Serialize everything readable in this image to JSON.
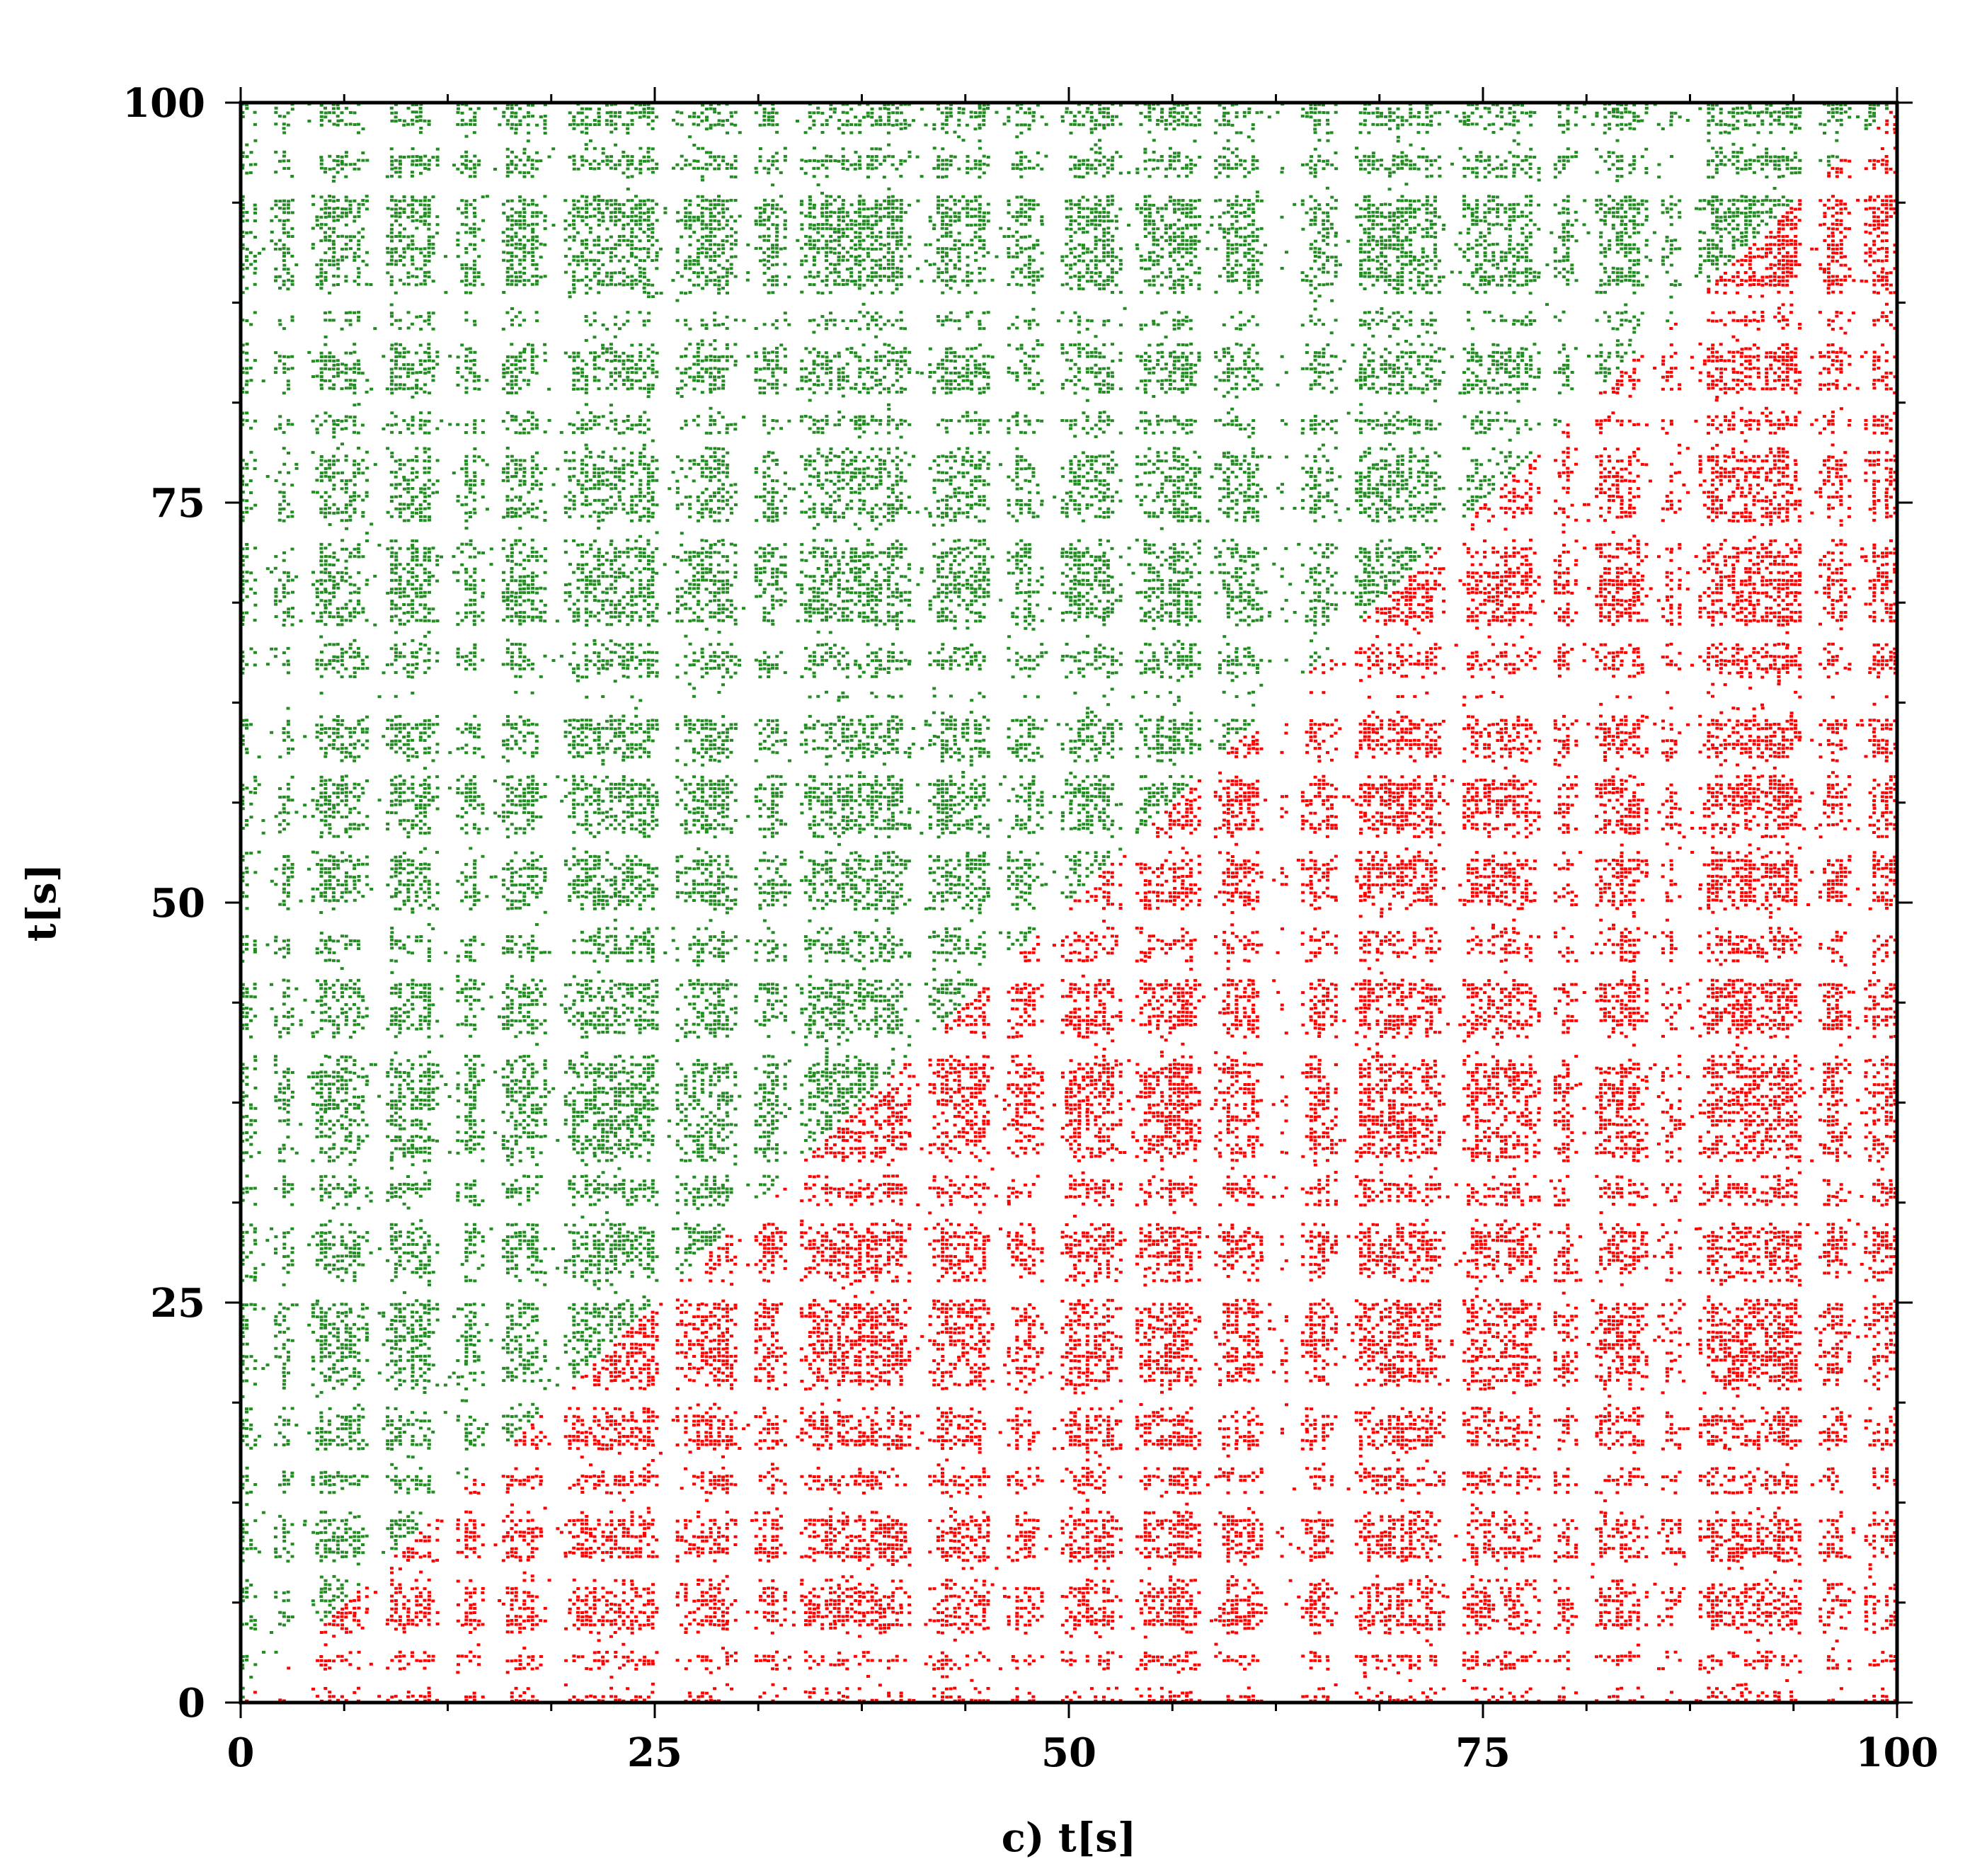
{
  "chart_data": {
    "type": "scatter",
    "subtype": "recurrence plot (upper-left and lower-right triangles colored differently)",
    "xlabel": "c) t[s]",
    "ylabel": "t[s]",
    "xlim": [
      0,
      100
    ],
    "ylim": [
      0,
      100
    ],
    "x_ticks": [
      "0",
      "25",
      "50",
      "75",
      "100"
    ],
    "y_ticks": [
      "0",
      "25",
      "50",
      "75",
      "100"
    ],
    "minor_tick_step": 6.25,
    "grid": false,
    "legend": "none",
    "regions": [
      {
        "region": "above-diagonal (y > x)",
        "color": "#228B22"
      },
      {
        "region": "below-diagonal (y < x)",
        "color": "#FF0000"
      }
    ],
    "recurrence_gaps": {
      "note": "horizontal/vertical white bands where few recurrence points occur",
      "times": [
        1.5,
        3.8,
        8.2,
        12.5,
        15.2,
        19.0,
        25.8,
        30.5,
        33.4,
        41.0,
        45.8,
        49.0,
        53.6,
        58.4,
        62.3,
        63.6,
        66.7,
        73.2,
        78.9,
        81.2,
        85.4,
        87.5,
        94.8,
        97.6
      ]
    }
  }
}
